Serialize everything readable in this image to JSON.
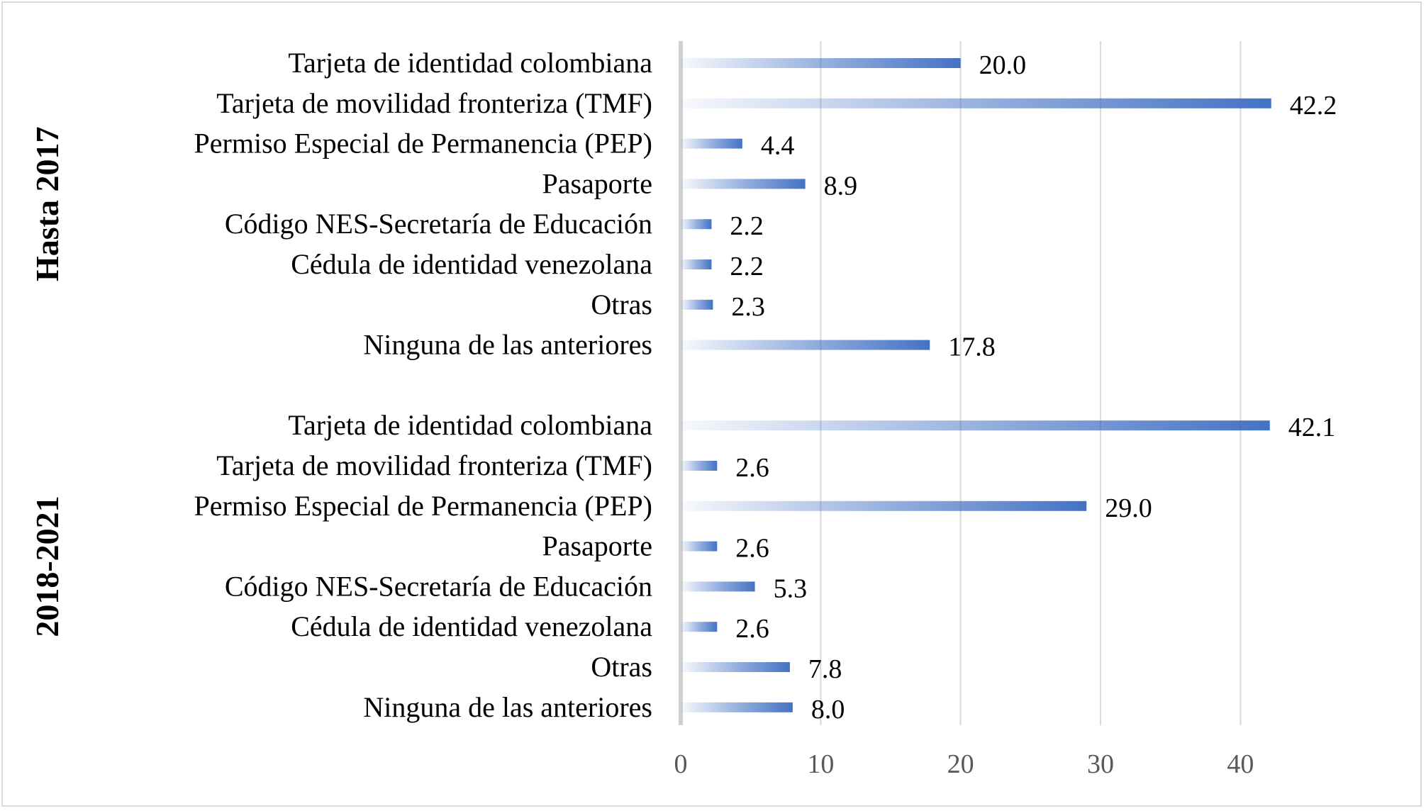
{
  "colors": {
    "bar": "#4472c4",
    "grid": "#d9d9d9",
    "axis": "#d0d0d0",
    "tick_text": "#595959"
  },
  "chart_data": {
    "type": "bar",
    "orientation": "horizontal",
    "xlim": [
      0,
      45
    ],
    "ticks": [
      0,
      10,
      20,
      30,
      40
    ],
    "grid": true,
    "legend": "none",
    "value_format": "one-decimal",
    "groups": [
      {
        "name": "Hasta 2017",
        "categories": [
          "Tarjeta de identidad colombiana",
          "Tarjeta de movilidad fronteriza (TMF)",
          "Permiso Especial de Permanencia (PEP)",
          "Pasaporte",
          "Código NES-Secretaría de Educación",
          "Cédula de identidad venezolana",
          "Otras",
          "Ninguna de las anteriores"
        ],
        "values": [
          20.0,
          42.2,
          4.4,
          8.9,
          2.2,
          2.2,
          2.3,
          17.8
        ]
      },
      {
        "name": "2018-2021",
        "categories": [
          "Tarjeta de identidad colombiana",
          "Tarjeta de movilidad fronteriza (TMF)",
          "Permiso Especial de Permanencia (PEP)",
          "Pasaporte",
          "Código NES-Secretaría de Educación",
          "Cédula de identidad venezolana",
          "Otras",
          "Ninguna de las anteriores"
        ],
        "values": [
          42.1,
          2.6,
          29.0,
          2.6,
          5.3,
          2.6,
          7.8,
          8.0
        ]
      }
    ]
  }
}
